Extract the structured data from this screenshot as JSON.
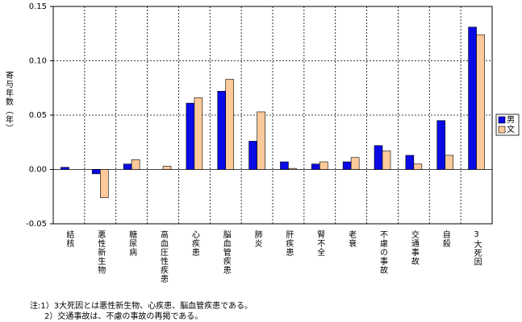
{
  "chart_data": {
    "type": "bar",
    "y_label": "寄与年数（年）",
    "categories": [
      "結核",
      "悪性新生物",
      "糖尿病",
      "高血圧性疾患",
      "心疾患",
      "脳血管疾患",
      "肺炎",
      "肝疾患",
      "腎不全",
      "老衰",
      "不慮の事故",
      "交通事故",
      "自殺",
      "3大死因"
    ],
    "series": [
      {
        "name": "男",
        "color": "#0a0ae6",
        "values": [
          0.002,
          -0.004,
          0.005,
          0,
          0.061,
          0.072,
          0.026,
          0.007,
          0.005,
          0.007,
          0.022,
          0.013,
          0.045,
          0.131
        ]
      },
      {
        "name": "文",
        "color": "#fcc99a",
        "values": [
          0,
          -0.026,
          0.009,
          0.003,
          0.066,
          0.083,
          0.053,
          0.001,
          0.007,
          0.011,
          0.017,
          0.005,
          0.013,
          0.124
        ]
      }
    ],
    "ylim": [
      -0.05,
      0.15
    ],
    "yticks": [
      {
        "value": -0.05,
        "label": "-0.05"
      },
      {
        "value": 0,
        "label": "0.00"
      },
      {
        "value": 0.05,
        "label": "0.05"
      },
      {
        "value": 0.1,
        "label": "0.10"
      },
      {
        "value": 0.15,
        "label": "0.15"
      }
    ],
    "grid": true,
    "legend": "right",
    "notes": [
      "注:1）3大死因とは悪性新生物、心疾患、脳血管疾患である。",
      "2）交通事故は、不慮の事故の再掲である。"
    ]
  }
}
